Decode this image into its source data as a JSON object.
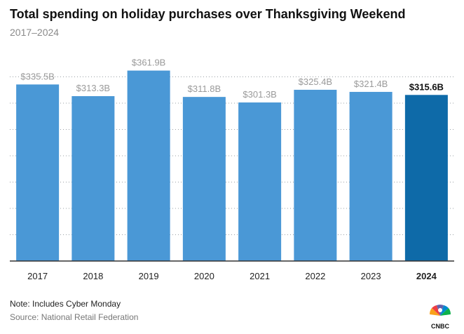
{
  "header": {
    "title": "Total spending on holiday purchases over Thanksgiving Weekend",
    "subtitle": "2017–2024"
  },
  "footer": {
    "note": "Note: Includes Cyber Monday",
    "source": "Source: National Retail Federation",
    "logo_text": "CNBC"
  },
  "colors": {
    "bar": "#4a98d6",
    "bar_highlight": "#0e6aa8",
    "label": "#9a9a9a",
    "label_highlight": "#111111",
    "grid": "#9aa0a6",
    "baseline": "#333333"
  },
  "chart_data": {
    "type": "bar",
    "categories": [
      "2017",
      "2018",
      "2019",
      "2020",
      "2021",
      "2022",
      "2023",
      "2024"
    ],
    "values": [
      335.5,
      313.3,
      361.9,
      311.8,
      301.3,
      325.4,
      321.4,
      315.6
    ],
    "data_labels": [
      "$335.5B",
      "$313.3B",
      "$361.9B",
      "$311.8B",
      "$301.3B",
      "$325.4B",
      "$321.4B",
      "$315.6B"
    ],
    "highlight": "2024",
    "title": "Total spending on holiday purchases over Thanksgiving Weekend",
    "subtitle": "2017–2024",
    "xlabel": "",
    "ylabel": "",
    "ylim": [
      0,
      400
    ],
    "grid": true
  }
}
